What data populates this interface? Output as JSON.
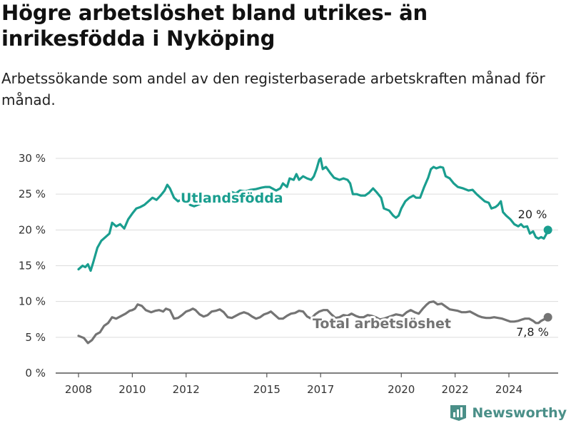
{
  "title": "Högre arbetslöshet bland utrikes- än inrikesfödda i Nyköping",
  "subtitle": "Arbetssökande som andel av den registerbaserade arbetskraften månad för månad.",
  "brand": "Newsworthy",
  "colors": {
    "foreign": "#1a9e8f",
    "total": "#747474",
    "grid": "#dcdcdc",
    "brand": "#4a8f88"
  },
  "chart_data": {
    "type": "line",
    "ylim": [
      0,
      30
    ],
    "yticks": [
      0,
      5,
      10,
      15,
      20,
      25,
      30
    ],
    "ytick_labels": [
      "0 %",
      "5 %",
      "10 %",
      "15 %",
      "20 %",
      "25 %",
      "30 %"
    ],
    "xlim": [
      2007.5,
      2025.7
    ],
    "xticks": [
      2008,
      2010,
      2012,
      2015,
      2017,
      2020,
      2022,
      2024
    ],
    "xtick_labels": [
      "2008",
      "2010",
      "2012",
      "2015",
      "2017",
      "2020",
      "2022",
      "2024"
    ],
    "series": [
      {
        "name": "Utlandsfödda",
        "end_label": "20 %",
        "points": [
          [
            2008.0,
            14.5
          ],
          [
            2008.15,
            15.0
          ],
          [
            2008.25,
            14.8
          ],
          [
            2008.35,
            15.2
          ],
          [
            2008.45,
            14.3
          ],
          [
            2008.55,
            15.5
          ],
          [
            2008.7,
            17.5
          ],
          [
            2008.85,
            18.5
          ],
          [
            2009.0,
            19.0
          ],
          [
            2009.15,
            19.5
          ],
          [
            2009.25,
            21.0
          ],
          [
            2009.4,
            20.5
          ],
          [
            2009.55,
            20.8
          ],
          [
            2009.7,
            20.2
          ],
          [
            2009.85,
            21.5
          ],
          [
            2010.0,
            22.3
          ],
          [
            2010.15,
            23.0
          ],
          [
            2010.3,
            23.2
          ],
          [
            2010.45,
            23.5
          ],
          [
            2010.6,
            24.0
          ],
          [
            2010.75,
            24.5
          ],
          [
            2010.9,
            24.2
          ],
          [
            2011.05,
            24.8
          ],
          [
            2011.2,
            25.5
          ],
          [
            2011.3,
            26.3
          ],
          [
            2011.4,
            25.8
          ],
          [
            2011.55,
            24.5
          ],
          [
            2011.7,
            24.0
          ],
          [
            2011.85,
            24.3
          ],
          [
            2012.0,
            24.2
          ],
          [
            2012.15,
            23.5
          ],
          [
            2012.3,
            23.3
          ],
          [
            2012.5,
            23.6
          ],
          [
            2012.7,
            23.9
          ],
          [
            2012.9,
            24.1
          ],
          [
            2013.1,
            24.5
          ],
          [
            2013.3,
            24.8
          ],
          [
            2013.5,
            25.0
          ],
          [
            2013.7,
            25.3
          ],
          [
            2013.85,
            25.1
          ],
          [
            2014.0,
            25.5
          ],
          [
            2014.2,
            25.4
          ],
          [
            2014.4,
            25.6
          ],
          [
            2014.6,
            25.7
          ],
          [
            2014.8,
            25.9
          ],
          [
            2014.95,
            26.0
          ],
          [
            2015.1,
            26.0
          ],
          [
            2015.2,
            25.8
          ],
          [
            2015.35,
            25.5
          ],
          [
            2015.5,
            25.8
          ],
          [
            2015.6,
            26.5
          ],
          [
            2015.75,
            26.0
          ],
          [
            2015.85,
            27.2
          ],
          [
            2016.0,
            27.0
          ],
          [
            2016.1,
            27.8
          ],
          [
            2016.2,
            27.0
          ],
          [
            2016.35,
            27.5
          ],
          [
            2016.5,
            27.2
          ],
          [
            2016.65,
            27.0
          ],
          [
            2016.75,
            27.5
          ],
          [
            2016.85,
            28.5
          ],
          [
            2016.95,
            29.8
          ],
          [
            2017.0,
            30.0
          ],
          [
            2017.08,
            28.5
          ],
          [
            2017.2,
            28.8
          ],
          [
            2017.35,
            28.0
          ],
          [
            2017.5,
            27.3
          ],
          [
            2017.7,
            27.0
          ],
          [
            2017.85,
            27.2
          ],
          [
            2018.0,
            27.0
          ],
          [
            2018.1,
            26.5
          ],
          [
            2018.2,
            25.0
          ],
          [
            2018.35,
            25.0
          ],
          [
            2018.5,
            24.8
          ],
          [
            2018.65,
            24.8
          ],
          [
            2018.8,
            25.2
          ],
          [
            2018.95,
            25.8
          ],
          [
            2019.1,
            25.2
          ],
          [
            2019.25,
            24.5
          ],
          [
            2019.35,
            23.0
          ],
          [
            2019.55,
            22.7
          ],
          [
            2019.7,
            22.0
          ],
          [
            2019.8,
            21.7
          ],
          [
            2019.9,
            22.0
          ],
          [
            2020.0,
            23.0
          ],
          [
            2020.15,
            24.0
          ],
          [
            2020.3,
            24.5
          ],
          [
            2020.45,
            24.8
          ],
          [
            2020.55,
            24.5
          ],
          [
            2020.7,
            24.5
          ],
          [
            2020.85,
            26.0
          ],
          [
            2021.0,
            27.3
          ],
          [
            2021.1,
            28.5
          ],
          [
            2021.2,
            28.8
          ],
          [
            2021.3,
            28.6
          ],
          [
            2021.45,
            28.8
          ],
          [
            2021.55,
            28.7
          ],
          [
            2021.65,
            27.5
          ],
          [
            2021.8,
            27.2
          ],
          [
            2021.95,
            26.5
          ],
          [
            2022.1,
            26.0
          ],
          [
            2022.3,
            25.8
          ],
          [
            2022.5,
            25.5
          ],
          [
            2022.65,
            25.6
          ],
          [
            2022.8,
            25.0
          ],
          [
            2022.95,
            24.5
          ],
          [
            2023.1,
            24.0
          ],
          [
            2023.25,
            23.8
          ],
          [
            2023.35,
            23.0
          ],
          [
            2023.5,
            23.2
          ],
          [
            2023.6,
            23.5
          ],
          [
            2023.7,
            24.0
          ],
          [
            2023.78,
            22.5
          ],
          [
            2023.9,
            22.0
          ],
          [
            2024.05,
            21.5
          ],
          [
            2024.2,
            20.8
          ],
          [
            2024.35,
            20.5
          ],
          [
            2024.45,
            20.8
          ],
          [
            2024.55,
            20.4
          ],
          [
            2024.68,
            20.5
          ],
          [
            2024.78,
            19.5
          ],
          [
            2024.9,
            19.8
          ],
          [
            2025.0,
            19.0
          ],
          [
            2025.1,
            18.8
          ],
          [
            2025.2,
            19.0
          ],
          [
            2025.3,
            18.8
          ],
          [
            2025.4,
            19.5
          ],
          [
            2025.45,
            20.0
          ]
        ]
      },
      {
        "name": "Total arbetslöshet",
        "end_label": "7,8 %",
        "points": [
          [
            2008.0,
            5.2
          ],
          [
            2008.2,
            4.9
          ],
          [
            2008.35,
            4.2
          ],
          [
            2008.5,
            4.6
          ],
          [
            2008.65,
            5.4
          ],
          [
            2008.8,
            5.7
          ],
          [
            2008.95,
            6.6
          ],
          [
            2009.1,
            7.0
          ],
          [
            2009.25,
            7.8
          ],
          [
            2009.4,
            7.6
          ],
          [
            2009.6,
            8.0
          ],
          [
            2009.75,
            8.3
          ],
          [
            2009.9,
            8.7
          ],
          [
            2010.0,
            8.8
          ],
          [
            2010.1,
            9.0
          ],
          [
            2010.2,
            9.6
          ],
          [
            2010.35,
            9.4
          ],
          [
            2010.5,
            8.8
          ],
          [
            2010.7,
            8.5
          ],
          [
            2010.85,
            8.7
          ],
          [
            2011.0,
            8.8
          ],
          [
            2011.15,
            8.6
          ],
          [
            2011.25,
            9.0
          ],
          [
            2011.4,
            8.8
          ],
          [
            2011.55,
            7.6
          ],
          [
            2011.7,
            7.7
          ],
          [
            2011.85,
            8.1
          ],
          [
            2012.0,
            8.6
          ],
          [
            2012.15,
            8.8
          ],
          [
            2012.25,
            9.0
          ],
          [
            2012.35,
            8.8
          ],
          [
            2012.5,
            8.2
          ],
          [
            2012.65,
            7.9
          ],
          [
            2012.8,
            8.1
          ],
          [
            2012.95,
            8.6
          ],
          [
            2013.1,
            8.7
          ],
          [
            2013.25,
            8.9
          ],
          [
            2013.4,
            8.5
          ],
          [
            2013.55,
            7.8
          ],
          [
            2013.7,
            7.7
          ],
          [
            2013.85,
            8.0
          ],
          [
            2014.0,
            8.3
          ],
          [
            2014.15,
            8.5
          ],
          [
            2014.3,
            8.3
          ],
          [
            2014.45,
            7.9
          ],
          [
            2014.6,
            7.6
          ],
          [
            2014.75,
            7.8
          ],
          [
            2014.9,
            8.2
          ],
          [
            2015.05,
            8.4
          ],
          [
            2015.15,
            8.6
          ],
          [
            2015.3,
            8.1
          ],
          [
            2015.45,
            7.6
          ],
          [
            2015.6,
            7.6
          ],
          [
            2015.75,
            8.0
          ],
          [
            2015.9,
            8.3
          ],
          [
            2016.05,
            8.4
          ],
          [
            2016.2,
            8.7
          ],
          [
            2016.35,
            8.6
          ],
          [
            2016.5,
            7.9
          ],
          [
            2016.65,
            7.6
          ],
          [
            2016.8,
            8.2
          ],
          [
            2016.95,
            8.6
          ],
          [
            2017.1,
            8.8
          ],
          [
            2017.25,
            8.8
          ],
          [
            2017.4,
            8.2
          ],
          [
            2017.55,
            7.7
          ],
          [
            2017.7,
            7.8
          ],
          [
            2017.85,
            8.1
          ],
          [
            2018.0,
            8.0
          ],
          [
            2018.15,
            8.3
          ],
          [
            2018.3,
            8.0
          ],
          [
            2018.45,
            7.8
          ],
          [
            2018.6,
            7.8
          ],
          [
            2018.75,
            8.1
          ],
          [
            2018.9,
            8.0
          ],
          [
            2019.05,
            7.8
          ],
          [
            2019.2,
            7.5
          ],
          [
            2019.35,
            7.6
          ],
          [
            2019.5,
            7.8
          ],
          [
            2019.65,
            8.0
          ],
          [
            2019.8,
            8.2
          ],
          [
            2019.95,
            8.1
          ],
          [
            2020.05,
            8.0
          ],
          [
            2020.2,
            8.5
          ],
          [
            2020.35,
            8.8
          ],
          [
            2020.5,
            8.5
          ],
          [
            2020.65,
            8.3
          ],
          [
            2020.8,
            9.0
          ],
          [
            2020.95,
            9.6
          ],
          [
            2021.05,
            9.9
          ],
          [
            2021.2,
            10.0
          ],
          [
            2021.35,
            9.6
          ],
          [
            2021.5,
            9.7
          ],
          [
            2021.65,
            9.3
          ],
          [
            2021.8,
            8.9
          ],
          [
            2021.95,
            8.8
          ],
          [
            2022.1,
            8.7
          ],
          [
            2022.25,
            8.5
          ],
          [
            2022.4,
            8.5
          ],
          [
            2022.55,
            8.6
          ],
          [
            2022.7,
            8.3
          ],
          [
            2022.85,
            8.0
          ],
          [
            2023.0,
            7.8
          ],
          [
            2023.15,
            7.7
          ],
          [
            2023.3,
            7.7
          ],
          [
            2023.45,
            7.8
          ],
          [
            2023.6,
            7.7
          ],
          [
            2023.75,
            7.6
          ],
          [
            2023.9,
            7.4
          ],
          [
            2024.05,
            7.2
          ],
          [
            2024.2,
            7.2
          ],
          [
            2024.35,
            7.3
          ],
          [
            2024.5,
            7.5
          ],
          [
            2024.6,
            7.6
          ],
          [
            2024.75,
            7.6
          ],
          [
            2024.9,
            7.3
          ],
          [
            2025.0,
            7.0
          ],
          [
            2025.1,
            7.0
          ],
          [
            2025.2,
            7.3
          ],
          [
            2025.3,
            7.5
          ],
          [
            2025.45,
            7.8
          ]
        ]
      }
    ]
  }
}
